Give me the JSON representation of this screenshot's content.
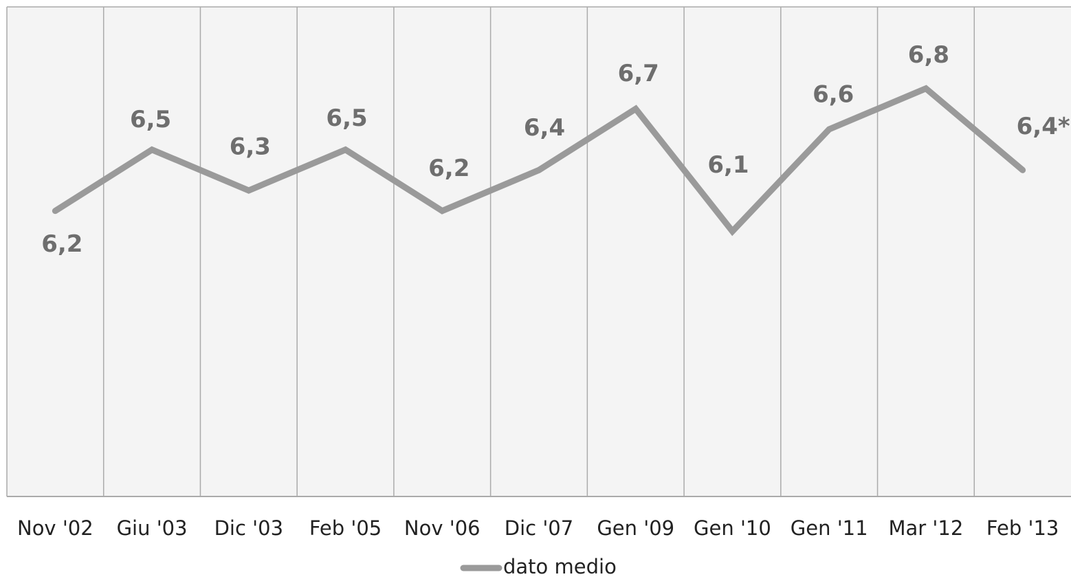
{
  "chart_data": {
    "type": "line",
    "categories": [
      "Nov '02",
      "Giu '03",
      "Dic '03",
      "Feb '05",
      "Nov '06",
      "Dic '07",
      "Gen '09",
      "Gen '10",
      "Gen '11",
      "Mar '12",
      "Feb '13"
    ],
    "series": [
      {
        "name": "dato medio",
        "color": "#9a9a9a",
        "values": [
          6.2,
          6.5,
          6.3,
          6.5,
          6.2,
          6.4,
          6.7,
          6.1,
          6.6,
          6.8,
          6.4
        ],
        "value_labels": [
          "6,2",
          "6,5",
          "6,3",
          "6,5",
          "6,2",
          "6,4",
          "6,7",
          "6,1",
          "6,6",
          "6,8",
          "6,4*"
        ]
      }
    ],
    "ylim": [
      4.8,
      7.2
    ],
    "legend": "bottom"
  }
}
